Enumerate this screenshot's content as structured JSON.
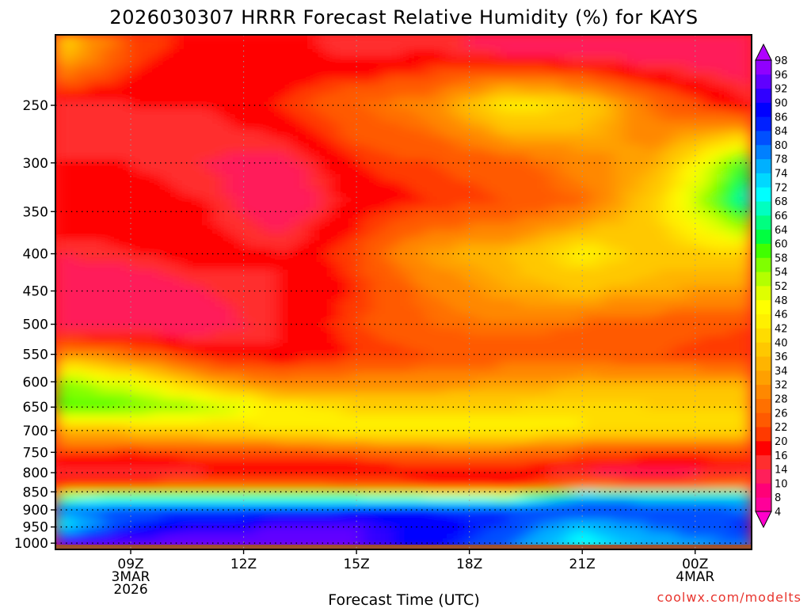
{
  "chart_data": {
    "type": "heatmap",
    "title": "2026030307 HRRR Forecast Relative Humidity (%) for KAYS",
    "xlabel": "Forecast Time (UTC)",
    "ylabel": "",
    "credit": "coolwx.com/modelts",
    "x": {
      "unit": "hour",
      "start_label": "07Z 3MAR",
      "range_hours": [
        7,
        25.5
      ],
      "ticks": [
        {
          "hour": 9,
          "label": "09Z",
          "sub1": "3MAR",
          "sub2": "2026"
        },
        {
          "hour": 12,
          "label": "12Z",
          "sub1": "",
          "sub2": ""
        },
        {
          "hour": 15,
          "label": "15Z",
          "sub1": "",
          "sub2": ""
        },
        {
          "hour": 18,
          "label": "18Z",
          "sub1": "",
          "sub2": ""
        },
        {
          "hour": 21,
          "label": "21Z",
          "sub1": "",
          "sub2": ""
        },
        {
          "hour": 24,
          "label": "00Z",
          "sub1": "4MAR",
          "sub2": ""
        }
      ]
    },
    "y": {
      "unit": "hPa",
      "range": [
        200,
        1020
      ],
      "ticks": [
        {
          "value": 250,
          "label": "250"
        },
        {
          "value": 300,
          "label": "300"
        },
        {
          "value": 350,
          "label": "350"
        },
        {
          "value": 400,
          "label": "400"
        },
        {
          "value": 450,
          "label": "450"
        },
        {
          "value": 500,
          "label": "500"
        },
        {
          "value": 550,
          "label": "550"
        },
        {
          "value": 600,
          "label": "600"
        },
        {
          "value": 650,
          "label": "650"
        },
        {
          "value": 700,
          "label": "700"
        },
        {
          "value": 750,
          "label": "750"
        },
        {
          "value": 800,
          "label": "800"
        },
        {
          "value": 850,
          "label": "850"
        },
        {
          "value": 900,
          "label": "900"
        },
        {
          "value": 950,
          "label": "950"
        },
        {
          "value": 1000,
          "label": "1000"
        }
      ]
    },
    "surface_pressure_hpa": 1005,
    "colorbar": {
      "levels": [
        "4",
        "8",
        "10",
        "14",
        "16",
        "20",
        "22",
        "26",
        "28",
        "32",
        "34",
        "36",
        "40",
        "42",
        "46",
        "48",
        "52",
        "54",
        "58",
        "60",
        "64",
        "66",
        "68",
        "72",
        "74",
        "78",
        "80",
        "84",
        "86",
        "90",
        "92",
        "96",
        "98"
      ],
      "colors": [
        "#ff00cc",
        "#ff0099",
        "#ff0077",
        "#ff1f5a",
        "#ff2e2e",
        "#ff0000",
        "#ff3a00",
        "#ff5a00",
        "#ff7000",
        "#ff8800",
        "#ffa000",
        "#ffb400",
        "#ffc800",
        "#ffdc00",
        "#fff000",
        "#ffff00",
        "#dfff00",
        "#b4ff00",
        "#80ff00",
        "#40ff00",
        "#00ff40",
        "#00ff80",
        "#00ffc0",
        "#00ffff",
        "#00d8ff",
        "#00b0ff",
        "#0080ff",
        "#0050ff",
        "#0020ff",
        "#0000ff",
        "#3000ff",
        "#6000ff",
        "#9000ff",
        "#b000ff"
      ]
    },
    "rh_profiles": [
      {
        "p": 210,
        "values": [
          40,
          22,
          18,
          18,
          14,
          16,
          12,
          10,
          10,
          10
        ]
      },
      {
        "p": 250,
        "values": [
          14,
          16,
          16,
          20,
          26,
          30,
          44,
          40,
          26,
          16
        ]
      },
      {
        "p": 300,
        "values": [
          16,
          16,
          14,
          12,
          20,
          22,
          24,
          30,
          34,
          62
        ]
      },
      {
        "p": 340,
        "values": [
          20,
          18,
          16,
          10,
          18,
          20,
          22,
          26,
          40,
          70
        ]
      },
      {
        "p": 400,
        "values": [
          14,
          16,
          18,
          16,
          22,
          34,
          36,
          44,
          38,
          40
        ]
      },
      {
        "p": 450,
        "values": [
          10,
          10,
          14,
          16,
          20,
          28,
          34,
          36,
          34,
          32
        ]
      },
      {
        "p": 500,
        "values": [
          10,
          10,
          12,
          16,
          22,
          26,
          28,
          26,
          24,
          22
        ]
      },
      {
        "p": 550,
        "values": [
          32,
          26,
          18,
          16,
          20,
          22,
          24,
          24,
          22,
          20
        ]
      },
      {
        "p": 600,
        "values": [
          56,
          48,
          34,
          28,
          30,
          30,
          32,
          34,
          34,
          34
        ]
      },
      {
        "p": 650,
        "values": [
          60,
          58,
          54,
          44,
          40,
          40,
          40,
          42,
          40,
          40
        ]
      },
      {
        "p": 700,
        "values": [
          36,
          38,
          40,
          42,
          46,
          46,
          46,
          42,
          40,
          40
        ]
      },
      {
        "p": 750,
        "values": [
          22,
          20,
          22,
          24,
          24,
          26,
          26,
          24,
          22,
          22
        ]
      },
      {
        "p": 800,
        "values": [
          14,
          14,
          16,
          16,
          16,
          18,
          18,
          14,
          12,
          16
        ]
      },
      {
        "p": 840,
        "values": [
          22,
          26,
          28,
          28,
          26,
          22,
          20,
          30,
          28,
          30
        ]
      },
      {
        "p": 860,
        "values": [
          58,
          62,
          64,
          62,
          60,
          58,
          56,
          76,
          74,
          74
        ]
      },
      {
        "p": 900,
        "values": [
          80,
          82,
          82,
          84,
          86,
          86,
          84,
          84,
          82,
          80
        ]
      },
      {
        "p": 950,
        "values": [
          68,
          86,
          90,
          92,
          92,
          88,
          84,
          74,
          80,
          86
        ]
      },
      {
        "p": 1000,
        "values": [
          94,
          94,
          94,
          94,
          92,
          88,
          80,
          70,
          76,
          80
        ]
      }
    ],
    "rh_profile_hours": [
      7,
      9,
      11,
      13,
      15,
      17,
      19,
      21,
      23,
      25.5
    ]
  }
}
